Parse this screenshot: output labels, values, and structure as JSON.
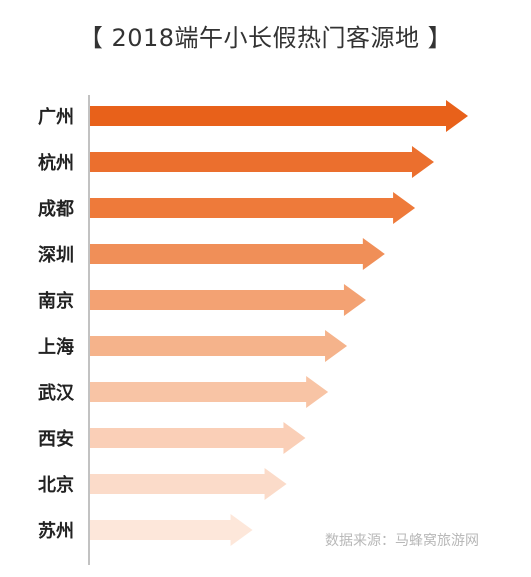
{
  "chart_data": {
    "type": "bar",
    "orientation": "horizontal",
    "title": "【 2018端午小长假热门客源地 】",
    "categories": [
      "广州",
      "杭州",
      "成都",
      "深圳",
      "南京",
      "上海",
      "武汉",
      "西安",
      "北京",
      "苏州"
    ],
    "values": [
      10,
      9.1,
      8.6,
      7.8,
      7.3,
      6.8,
      6.3,
      5.7,
      5.2,
      4.3
    ],
    "colors": [
      "#e8611a",
      "#eb6f2e",
      "#ee7a3a",
      "#f08f58",
      "#f3a273",
      "#f5b38b",
      "#f8c4a5",
      "#facfb7",
      "#fbdbc9",
      "#fde7da"
    ],
    "xlabel": "",
    "ylabel": "",
    "grid": false,
    "source": "数据来源：马蜂窝旅游网"
  }
}
